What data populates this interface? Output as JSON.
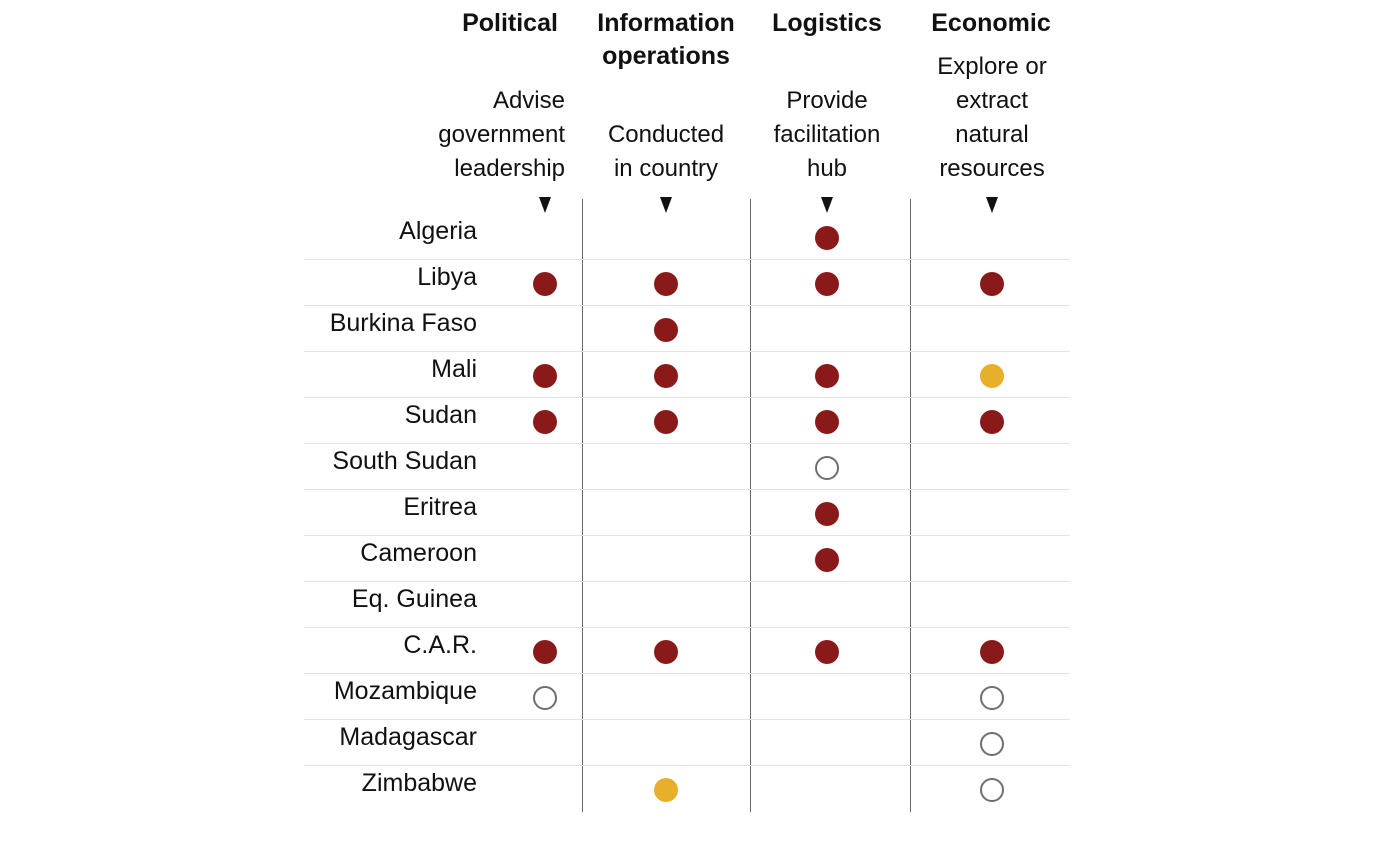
{
  "chart_data": {
    "type": "table",
    "columns": [
      {
        "title": "Political",
        "description": [
          "Advise",
          "government",
          "leadership"
        ]
      },
      {
        "title": "Information operations",
        "description": [
          "Conducted",
          "in country"
        ]
      },
      {
        "title": "Logistics",
        "description": [
          "Provide",
          "facilitation",
          "hub"
        ]
      },
      {
        "title": "Economic",
        "description": [
          "Explore or",
          "extract",
          "natural",
          "resources"
        ]
      }
    ],
    "marker_colors": {
      "confirmed": "#8a1a1a",
      "partial": "#e8b02a",
      "reported": "#6e6e6e"
    },
    "rows": [
      {
        "country": "Algeria",
        "values": [
          null,
          null,
          "confirmed",
          null
        ]
      },
      {
        "country": "Libya",
        "values": [
          "confirmed",
          "confirmed",
          "confirmed",
          "confirmed"
        ]
      },
      {
        "country": "Burkina Faso",
        "values": [
          null,
          "confirmed",
          null,
          null
        ]
      },
      {
        "country": "Mali",
        "values": [
          "confirmed",
          "confirmed",
          "confirmed",
          "partial"
        ]
      },
      {
        "country": "Sudan",
        "values": [
          "confirmed",
          "confirmed",
          "confirmed",
          "confirmed"
        ]
      },
      {
        "country": "South Sudan",
        "values": [
          null,
          null,
          "reported",
          null
        ]
      },
      {
        "country": "Eritrea",
        "values": [
          null,
          null,
          "confirmed",
          null
        ]
      },
      {
        "country": "Cameroon",
        "values": [
          null,
          null,
          "confirmed",
          null
        ]
      },
      {
        "country": "Eq. Guinea",
        "values": [
          null,
          null,
          null,
          null
        ]
      },
      {
        "country": "C.A.R.",
        "values": [
          "confirmed",
          "confirmed",
          "confirmed",
          "confirmed"
        ]
      },
      {
        "country": "Mozambique",
        "values": [
          "reported",
          null,
          null,
          "reported"
        ]
      },
      {
        "country": "Madagascar",
        "values": [
          null,
          null,
          null,
          "reported"
        ]
      },
      {
        "country": "Zimbabwe",
        "values": [
          null,
          "partial",
          null,
          "reported"
        ]
      }
    ]
  }
}
